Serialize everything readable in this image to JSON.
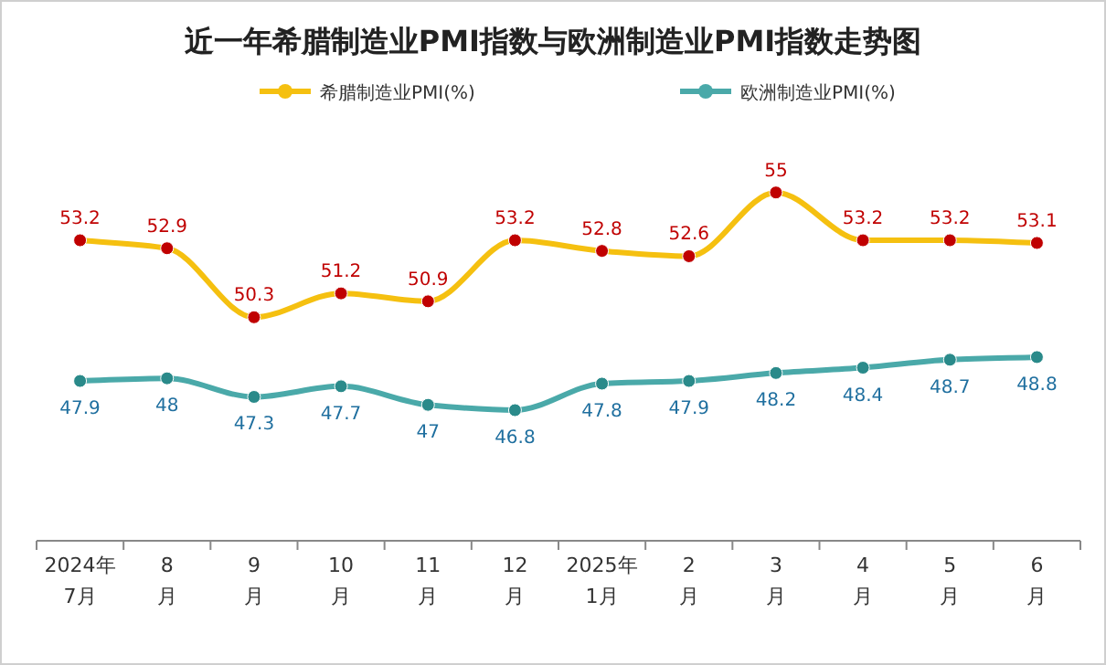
{
  "chart_data": {
    "type": "line",
    "title": "近一年希腊制造业PMI指数与欧洲制造业PMI指数走势图",
    "categories": [
      "2024年\n7月",
      "8\n月",
      "9\n月",
      "10\n月",
      "11\n月",
      "12\n月",
      "2025年\n1月",
      "2\n月",
      "3\n月",
      "4\n月",
      "5\n月",
      "6\n月"
    ],
    "series": [
      {
        "name": "希腊制造业PMI(%)",
        "color": "#f5c010",
        "values": [
          53.2,
          52.9,
          50.3,
          51.2,
          50.9,
          53.2,
          52.8,
          52.6,
          55,
          53.2,
          53.2,
          53.1
        ]
      },
      {
        "name": "欧洲制造业PMI(%)",
        "color": "#4aa9a9",
        "values": [
          47.9,
          48,
          47.3,
          47.7,
          47,
          46.8,
          47.8,
          47.9,
          48.2,
          48.4,
          48.7,
          48.8
        ]
      }
    ],
    "data_labels": true,
    "marker": "circle",
    "legend": "top",
    "grid": false
  }
}
